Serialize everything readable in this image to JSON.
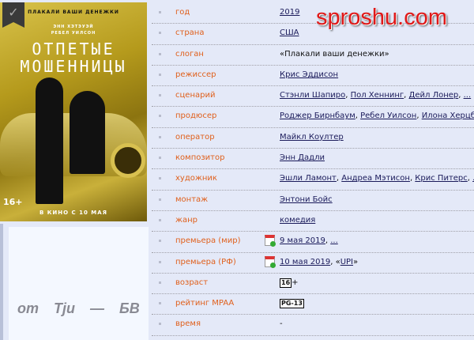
{
  "poster": {
    "tagline": "ПЛАКАЛИ ВАШИ ДЕНЕЖКИ",
    "actors": [
      "ЭНН ХЭТЭУЭЙ",
      "РЕБЕЛ УИЛСОН"
    ],
    "title_line1": "ОТПЕТЫЕ",
    "title_line2": "МОШЕННИЦЫ",
    "age": "16+",
    "release": "В КИНО С 10 МАЯ",
    "bookmark_icon": "bookmark-check-icon"
  },
  "watermark": "sproshu.com",
  "signature": "от Tju — БВ",
  "rows": [
    {
      "label": "год",
      "links": [
        "2019"
      ]
    },
    {
      "label": "страна",
      "links": [
        "США"
      ]
    },
    {
      "label": "слоган",
      "text": "«Плакали ваши денежки»"
    },
    {
      "label": "режиссер",
      "links": [
        "Крис Эддисон"
      ]
    },
    {
      "label": "сценарий",
      "links": [
        "Стэнли Шапиро",
        "Пол Хеннинг",
        "Дейл Лонер",
        "..."
      ]
    },
    {
      "label": "продюсер",
      "links": [
        "Роджер Бирнбаум",
        "Ребел Уилсон",
        "Илона Херцберг"
      ]
    },
    {
      "label": "оператор",
      "links": [
        "Майкл Коултер"
      ]
    },
    {
      "label": "композитор",
      "links": [
        "Энн Дадли"
      ]
    },
    {
      "label": "художник",
      "links": [
        "Эшли Ламонт",
        "Андреа Мэтисон",
        "Крис Питерс",
        "..."
      ]
    },
    {
      "label": "монтаж",
      "links": [
        "Энтони Бойс"
      ]
    },
    {
      "label": "жанр",
      "links": [
        "комедия"
      ]
    },
    {
      "label": "премьера (мир)",
      "links": [
        "9 мая 2019",
        "..."
      ],
      "calendar": true
    },
    {
      "label": "премьера (РФ)",
      "links": [
        "10 мая 2019",
        "UPI"
      ],
      "calendar": true
    },
    {
      "label": "возраст",
      "badge": "16",
      "suffix": "+"
    },
    {
      "label": "рейтинг MPAA",
      "badge": "PG-13"
    },
    {
      "label": "время",
      "text": "-"
    }
  ]
}
